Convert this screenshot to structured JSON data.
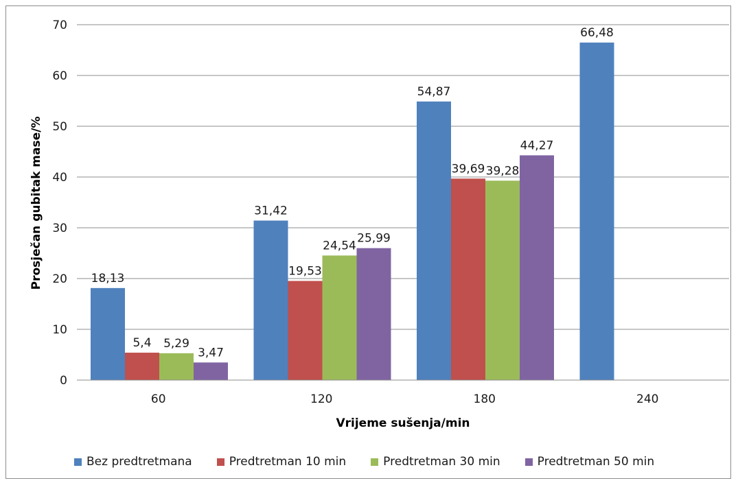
{
  "chart_data": {
    "type": "bar",
    "title": "",
    "xlabel": "Vrijeme sušenja/min",
    "ylabel": "Prosječan gubitak mase/%",
    "categories": [
      "60",
      "120",
      "180",
      "240"
    ],
    "ylim": [
      0,
      70
    ],
    "yticks": [
      0,
      10,
      20,
      30,
      40,
      50,
      60,
      70
    ],
    "grid": true,
    "legend_position": "bottom",
    "series": [
      {
        "name": "Bez predtretmana",
        "color": "#4f81bd",
        "values": [
          18.13,
          31.42,
          54.87,
          66.48
        ],
        "labels": [
          "18,13",
          "31,42",
          "54,87",
          "66,48"
        ]
      },
      {
        "name": "Predtretman 10 min",
        "color": "#c0504d",
        "values": [
          5.4,
          19.53,
          39.69,
          null
        ],
        "labels": [
          "5,4",
          "19,53",
          "39,69",
          ""
        ]
      },
      {
        "name": "Predtretman 30 min",
        "color": "#9bbb59",
        "values": [
          5.29,
          24.54,
          39.28,
          null
        ],
        "labels": [
          "5,29",
          "24,54",
          "39,28",
          ""
        ]
      },
      {
        "name": "Predtretman 50 min",
        "color": "#8064a2",
        "values": [
          3.47,
          25.99,
          44.27,
          null
        ],
        "labels": [
          "3,47",
          "25,99",
          "44,27",
          ""
        ]
      }
    ]
  }
}
